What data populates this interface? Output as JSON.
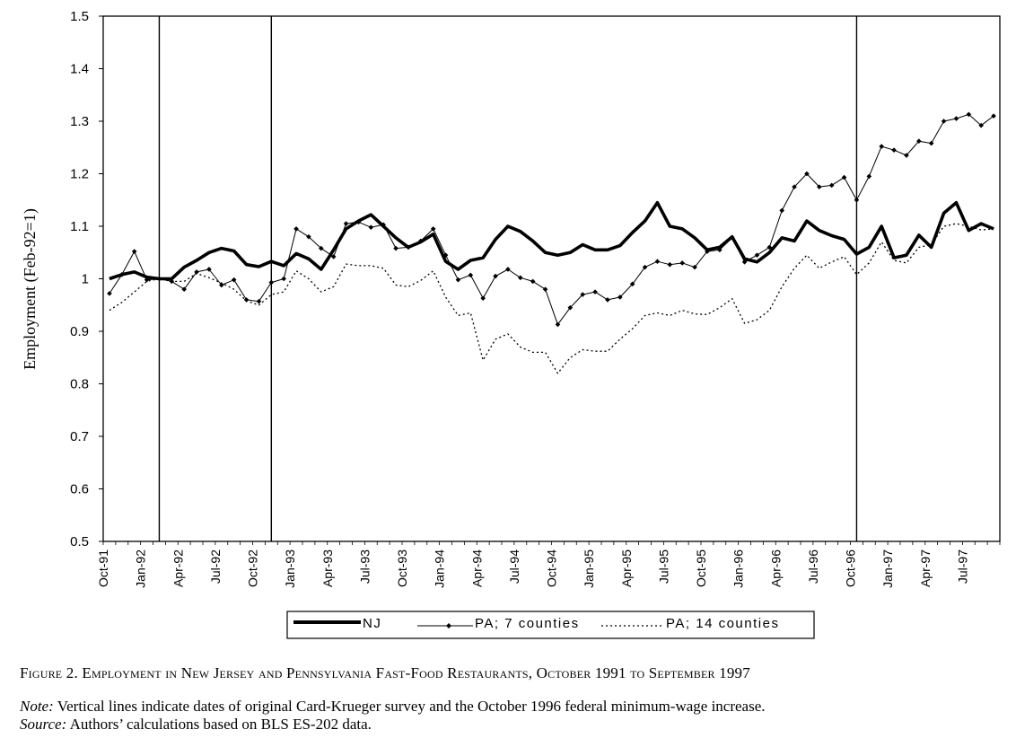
{
  "chart_data": {
    "type": "line",
    "title": "",
    "xlabel": "",
    "ylabel": "Employment (Feb-92=1)",
    "ylim": [
      0.5,
      1.5
    ],
    "yticks": [
      "0.5",
      "0.6",
      "0.7",
      "0.8",
      "0.9",
      "1",
      "1.1",
      "1.2",
      "1.3",
      "1.4",
      "1.5"
    ],
    "x_start": "Oct-91",
    "x_end": "Sep-97",
    "x_tick_labels": [
      "Oct-91",
      "Jan-92",
      "Apr-92",
      "Jul-92",
      "Oct-92",
      "Jan-93",
      "Apr-93",
      "Jul-93",
      "Oct-93",
      "Jan-94",
      "Apr-94",
      "Jul-94",
      "Oct-94",
      "Jan-95",
      "Apr-95",
      "Jul-95",
      "Oct-95",
      "Jan-96",
      "Apr-96",
      "Jul-96",
      "Oct-96",
      "Jan-97",
      "Apr-97",
      "Jul-97"
    ],
    "vertical_lines": [
      "Feb-92",
      "Nov-92",
      "Oct-96"
    ],
    "grid": false,
    "legend_position": "bottom",
    "series": [
      {
        "name": "NJ",
        "style": "thick-solid",
        "values": [
          1.0,
          1.008,
          1.013,
          1.003,
          1.0,
          1.0,
          1.022,
          1.035,
          1.05,
          1.058,
          1.053,
          1.027,
          1.023,
          1.033,
          1.025,
          1.048,
          1.038,
          1.018,
          1.055,
          1.095,
          1.11,
          1.122,
          1.1,
          1.078,
          1.06,
          1.07,
          1.085,
          1.033,
          1.018,
          1.035,
          1.04,
          1.075,
          1.1,
          1.09,
          1.072,
          1.05,
          1.045,
          1.05,
          1.065,
          1.055,
          1.055,
          1.063,
          1.088,
          1.11,
          1.145,
          1.1,
          1.095,
          1.078,
          1.055,
          1.06,
          1.08,
          1.038,
          1.032,
          1.05,
          1.078,
          1.072,
          1.11,
          1.092,
          1.082,
          1.075,
          1.047,
          1.06,
          1.1,
          1.04,
          1.045,
          1.083,
          1.06,
          1.125,
          1.145,
          1.092,
          1.105,
          1.095
        ]
      },
      {
        "name": "PA; 7 counties",
        "style": "thin-solid-diamond",
        "values": [
          0.972,
          1.008,
          1.052,
          0.998,
          1.0,
          0.995,
          0.98,
          1.013,
          1.018,
          0.988,
          0.998,
          0.96,
          0.957,
          0.993,
          1.0,
          1.095,
          1.08,
          1.058,
          1.042,
          1.105,
          1.108,
          1.098,
          1.103,
          1.058,
          1.06,
          1.072,
          1.095,
          1.045,
          0.998,
          1.007,
          0.963,
          1.005,
          1.018,
          1.002,
          0.995,
          0.98,
          0.913,
          0.945,
          0.97,
          0.975,
          0.96,
          0.965,
          0.99,
          1.022,
          1.033,
          1.027,
          1.03,
          1.022,
          1.052,
          1.055,
          1.078,
          1.032,
          1.045,
          1.06,
          1.13,
          1.175,
          1.2,
          1.175,
          1.178,
          1.193,
          1.15,
          1.195,
          1.252,
          1.245,
          1.235,
          1.262,
          1.258,
          1.3,
          1.305,
          1.313,
          1.292,
          1.31
        ]
      },
      {
        "name": "PA; 14 counties",
        "style": "dotted",
        "values": [
          0.94,
          0.955,
          0.975,
          0.995,
          1.0,
          0.995,
          0.995,
          1.01,
          1.002,
          0.992,
          0.98,
          0.958,
          0.95,
          0.97,
          0.975,
          1.015,
          1.0,
          0.975,
          0.985,
          1.028,
          1.025,
          1.025,
          1.02,
          0.988,
          0.985,
          0.997,
          1.015,
          0.965,
          0.93,
          0.935,
          0.845,
          0.885,
          0.895,
          0.87,
          0.86,
          0.86,
          0.82,
          0.85,
          0.865,
          0.862,
          0.862,
          0.885,
          0.905,
          0.93,
          0.935,
          0.93,
          0.94,
          0.933,
          0.932,
          0.945,
          0.962,
          0.915,
          0.922,
          0.94,
          0.985,
          1.02,
          1.045,
          1.02,
          1.032,
          1.042,
          1.008,
          1.03,
          1.07,
          1.035,
          1.03,
          1.06,
          1.065,
          1.1,
          1.105,
          1.1,
          1.093,
          1.095
        ]
      }
    ]
  },
  "legend": {
    "nj": "NJ",
    "pa7": "PA; 7 counties",
    "pa14": "PA; 14 counties"
  },
  "caption": {
    "title": "Figure 2. Employment in New Jersey and Pennsylvania Fast-Food Restaurants, October 1991 to September 1997",
    "note_label": "Note:",
    "note_text": "Vertical lines indicate dates of original Card-Krueger survey and the October 1996 federal minimum-wage increase.",
    "source_label": "Source:",
    "source_text": "Authors’ calculations based on BLS ES-202 data."
  },
  "colors": {
    "ink": "#000000",
    "background": "#ffffff"
  }
}
